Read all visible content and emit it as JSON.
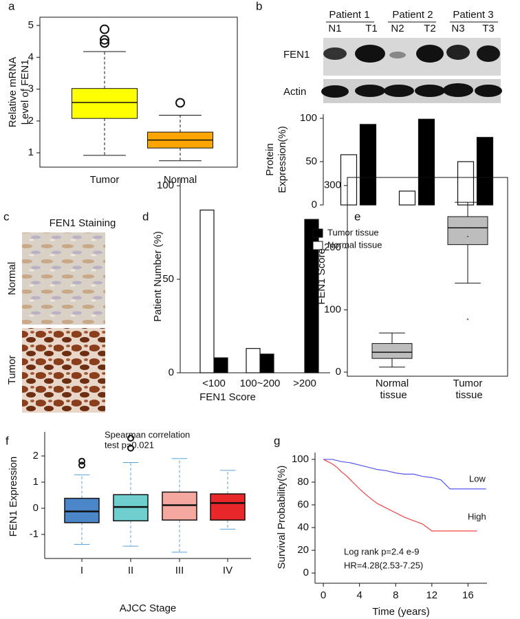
{
  "chart_data": [
    {
      "type": "boxplot",
      "label": "a",
      "ylabel": [
        "Relative mRNA",
        "Level of FEN1"
      ],
      "categories": [
        "Tumor",
        "Normal"
      ],
      "colors": [
        "#ffff00",
        "#ffa500"
      ],
      "boxes": [
        {
          "min": 0.92,
          "q1": 2.08,
          "median": 2.58,
          "q3": 3.02,
          "max": 4.18,
          "outliers": [
            4.45,
            4.55,
            4.88
          ]
        },
        {
          "min": 0.75,
          "q1": 1.15,
          "median": 1.4,
          "q3": 1.65,
          "max": 2.18,
          "outliers": [
            2.57
          ]
        }
      ],
      "ylim": [
        0.55,
        5.26
      ],
      "yticks": [
        1,
        2,
        3,
        4,
        5
      ]
    },
    {
      "type": "bar",
      "label": "b",
      "ylabel": [
        "Protein",
        "Expression(%)"
      ],
      "patients": [
        "Patient 1",
        "Patient 2",
        "Patient 3"
      ],
      "categories": [
        "N1",
        "T1",
        "N2",
        "T2",
        "N3",
        "T3"
      ],
      "blot_rows": [
        "FEN1",
        "Actin"
      ],
      "values": [
        58,
        93,
        16,
        99,
        50,
        78
      ],
      "colors": [
        "#ffffff",
        "#000000",
        "#ffffff",
        "#000000",
        "#ffffff",
        "#000000"
      ],
      "ylim": [
        0,
        104.8
      ],
      "yticks": [
        0,
        50,
        100
      ]
    },
    {
      "type": "grouped-bar",
      "label": "d",
      "ylabel": "Patient  Number (%)",
      "xlabel": "FEN1 Score",
      "categories": [
        "<100",
        "100~200",
        ">200"
      ],
      "series": [
        {
          "name": "Tumor tissue",
          "color": "#000000",
          "values": [
            8,
            10,
            82
          ]
        },
        {
          "name": "Normal tissue",
          "color": "#ffffff",
          "values": [
            87,
            13,
            0
          ]
        }
      ],
      "ylim": [
        0,
        103.7
      ],
      "yticks": [
        0,
        50,
        100
      ],
      "legend": "top-right"
    },
    {
      "type": "boxplot",
      "label": "e",
      "ylabel": [
        "FEN1 Score"
      ],
      "categories": [
        "Normal tissue",
        "Tumor tissue"
      ],
      "colors": [
        "#bdbdbd",
        "#bdbdbd"
      ],
      "boxes": [
        {
          "min": 8,
          "q1": 22,
          "median": 32,
          "q3": 46,
          "max": 63,
          "outliers": []
        },
        {
          "min": 143,
          "q1": 205,
          "median": 232,
          "q3": 250,
          "max": 273,
          "mean": 218,
          "outliers": [
            85
          ]
        }
      ],
      "ylim": [
        -6.6,
        313
      ],
      "yticks": [
        0,
        100,
        200,
        300
      ]
    },
    {
      "type": "boxplot",
      "label": "f",
      "subtitle": [
        "Spearman correlation",
        "test p=0.021"
      ],
      "ylabel": [
        "FEN1 Expression"
      ],
      "xlabel": "AJCC Stage",
      "categories": [
        "I",
        "II",
        "III",
        "IV"
      ],
      "colors": [
        "#4a86c8",
        "#6fcfcf",
        "#f5a8a0",
        "#e8272a"
      ],
      "boxes": [
        {
          "min": -1.38,
          "q1": -0.55,
          "median": -0.12,
          "q3": 0.38,
          "max": 1.28,
          "outliers": [
            1.65,
            1.8
          ]
        },
        {
          "min": -1.45,
          "q1": -0.48,
          "median": 0.05,
          "q3": 0.52,
          "max": 1.75,
          "outliers": [
            2.3,
            2.68
          ]
        },
        {
          "min": -1.68,
          "q1": -0.45,
          "median": 0.12,
          "q3": 0.62,
          "max": 1.9,
          "outliers": []
        },
        {
          "min": -0.8,
          "q1": -0.45,
          "median": 0.2,
          "q3": 0.55,
          "max": 1.45,
          "outliers": []
        }
      ],
      "ylim": [
        -1.92,
        2.92
      ],
      "yticks": [
        -1,
        0,
        1,
        2
      ]
    },
    {
      "type": "line",
      "label": "g",
      "ylabel": "Survival Probability(%)",
      "xlabel": "Time (years)",
      "annotations": [
        "Log rank p=2.4 e-9",
        "HR=4.28(2.53-7.25)"
      ],
      "series": [
        {
          "name": "Low",
          "color": "#5555ee",
          "x": [
            0,
            1,
            1.5,
            2,
            3,
            4,
            5,
            6,
            7,
            8,
            9,
            10,
            11,
            12,
            13,
            14,
            18
          ],
          "values": [
            100,
            100,
            99,
            98,
            97,
            95,
            93,
            91,
            90,
            88,
            87,
            87,
            85,
            84,
            82,
            74,
            74
          ]
        },
        {
          "name": "High",
          "color": "#ee4444",
          "x": [
            0,
            0.5,
            1,
            1.5,
            2,
            2.5,
            3,
            3.5,
            4,
            5,
            6,
            7,
            8,
            9,
            10,
            11,
            12,
            14,
            17
          ],
          "values": [
            100,
            98,
            96,
            93,
            89,
            86,
            82,
            78,
            74,
            67,
            61,
            57,
            53,
            49,
            46,
            43,
            37,
            37,
            37
          ]
        }
      ],
      "xlim": [
        -0.92,
        18.1
      ],
      "xticks": [
        0,
        4,
        8,
        12,
        16
      ],
      "ylim": [
        -9,
        106
      ],
      "yticks": [
        0,
        20,
        40,
        60,
        80,
        100
      ]
    }
  ],
  "panel_c": {
    "label": "c",
    "title": "FEN1 Staining",
    "rows": [
      "Normal",
      "Tumor"
    ]
  }
}
